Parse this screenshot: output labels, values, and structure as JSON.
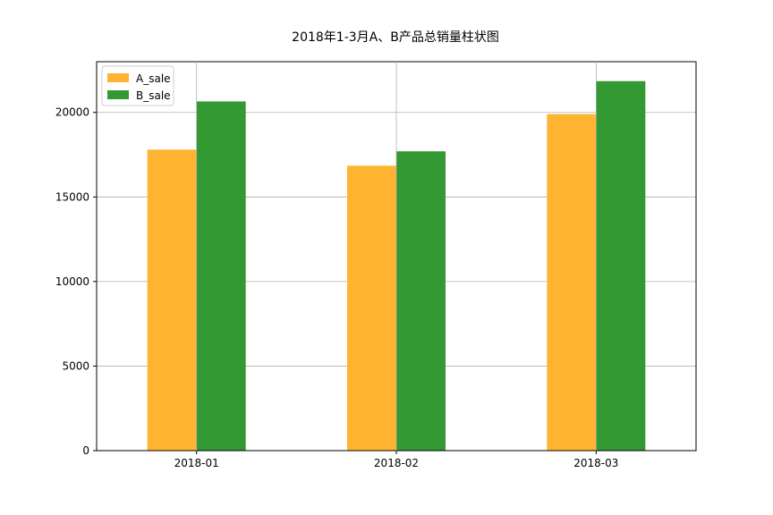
{
  "chart_data": {
    "type": "bar",
    "title": "2018年1-3月A、B产品总销量柱状图",
    "xlabel": "",
    "ylabel": "",
    "categories": [
      "2018-01",
      "2018-02",
      "2018-03"
    ],
    "series": [
      {
        "name": "A_sale",
        "values": [
          17800,
          16850,
          19900
        ],
        "color": "#FFB431"
      },
      {
        "name": "B_sale",
        "values": [
          20650,
          17700,
          21850
        ],
        "color": "#339933"
      }
    ],
    "ylim": [
      0,
      23000
    ],
    "yticks": [
      0,
      5000,
      10000,
      15000,
      20000
    ],
    "grid": true,
    "legend": "top-left"
  }
}
